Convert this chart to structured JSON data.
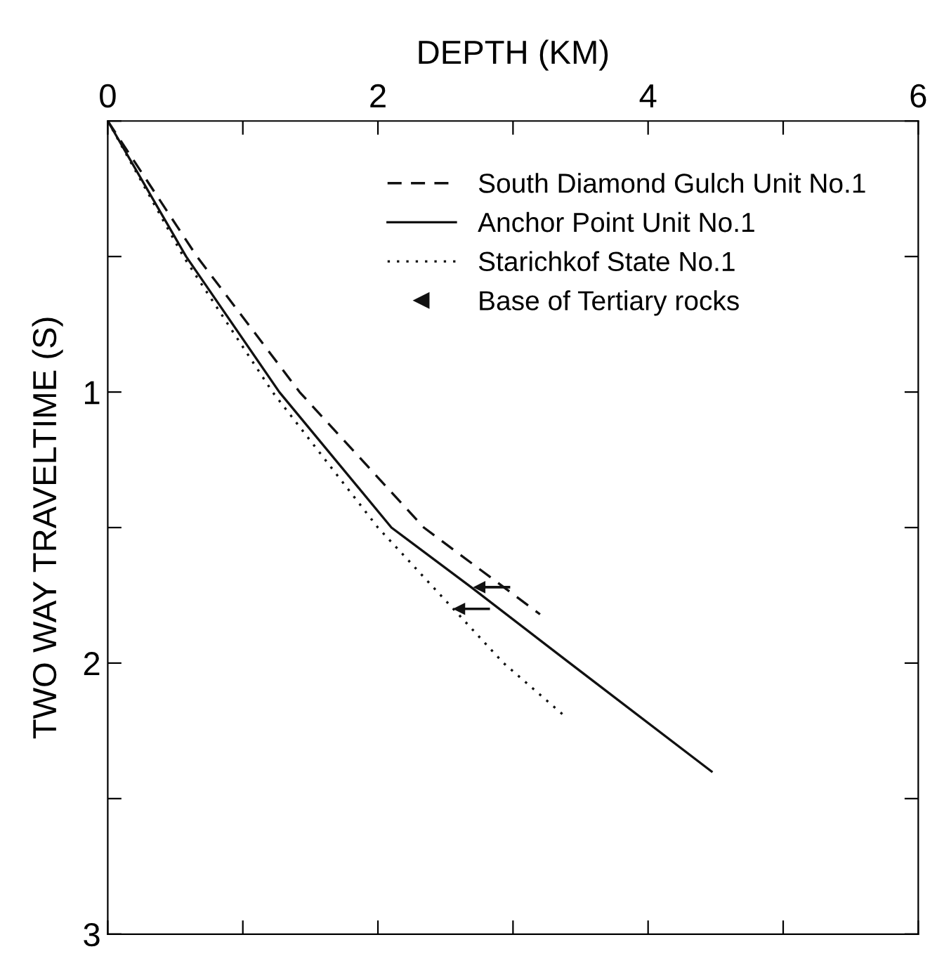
{
  "chart_data": {
    "type": "line",
    "xlabel": "DEPTH (KM)",
    "ylabel": "TWO WAY TRAVELTIME (S)",
    "xlim": [
      0,
      6
    ],
    "xticks": [
      0,
      {
        "value": 1,
        "label": null
      },
      2,
      {
        "value": 3,
        "label": null
      },
      4,
      {
        "value": 5,
        "label": null
      },
      6
    ],
    "ylim": [
      3,
      0
    ],
    "yticks": [
      {
        "value": 0,
        "label": null
      },
      {
        "value": 0.5,
        "label": null
      },
      1,
      {
        "value": 1.5,
        "label": null
      },
      2,
      {
        "value": 2.5,
        "label": null
      },
      3
    ],
    "legend": "top right",
    "grid": false,
    "series": [
      {
        "name": "South Diamond Gulch Unit No.1",
        "color": "#111111",
        "line_style": "dashed",
        "x": [
          0,
          0.66,
          1.42,
          2.34,
          3.2
        ],
        "values": [
          0,
          0.5,
          1,
          1.5,
          1.82
        ]
      },
      {
        "name": "Anchor Point Unit No.1",
        "color": "#111111",
        "line_style": "solid",
        "x": [
          0,
          0.58,
          1.27,
          2.1,
          2.69,
          3.42,
          4.47
        ],
        "values": [
          0,
          0.5,
          1,
          1.5,
          1.72,
          2,
          2.4
        ]
      },
      {
        "name": "Starichkof State No.1",
        "color": "#111111",
        "line_style": "dotted",
        "x": [
          0,
          0.56,
          1.22,
          2.0,
          2.93,
          3.37
        ],
        "values": [
          0,
          0.5,
          1,
          1.5,
          2,
          2.19
        ]
      },
      {
        "name": "Base of Tertiary rocks",
        "type": "scatter",
        "marker": "triangle",
        "color": "#111111",
        "x": [
          2.75,
          2.6
        ],
        "values": [
          1.72,
          1.8
        ]
      }
    ]
  }
}
